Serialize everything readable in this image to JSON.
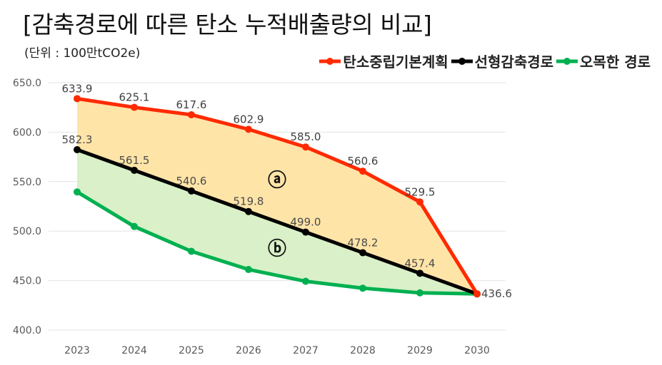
{
  "chart_data": {
    "type": "line",
    "title": "[감축경로에 따른 탄소 누적배출량의 비교]",
    "subtitle": "(단위 : 100만tCO2e)",
    "categories": [
      "2023",
      "2024",
      "2025",
      "2026",
      "2027",
      "2028",
      "2029",
      "2030"
    ],
    "y_ticks": [
      "650.0",
      "600.0",
      "550.0",
      "500.0",
      "450.0",
      "400.0"
    ],
    "ylim": [
      400,
      650
    ],
    "grid": true,
    "legend_position": "top-right",
    "series": [
      {
        "name": "탄소중립기본계획",
        "color": "#ff2a00",
        "values": [
          633.9,
          625.1,
          617.6,
          602.9,
          585.0,
          560.6,
          529.5,
          436.6
        ],
        "labels": [
          "633.9",
          "625.1",
          "617.6",
          "602.9",
          "585.0",
          "560.6",
          "529.5",
          ""
        ]
      },
      {
        "name": "선형감축경로",
        "color": "#000000",
        "values": [
          582.3,
          561.5,
          540.6,
          519.8,
          499.0,
          478.2,
          457.4,
          436.6
        ],
        "labels": [
          "582.3",
          "561.5",
          "540.6",
          "519.8",
          "499.0",
          "478.2",
          "457.4",
          "436.6"
        ]
      },
      {
        "name": "오목한 경로",
        "color": "#00b050",
        "values": [
          539.6,
          504.7,
          479.6,
          461.2,
          449.3,
          442.3,
          437.6,
          436.6
        ],
        "labels": [
          "",
          "",
          "",
          "",
          "",
          "",
          "",
          ""
        ]
      }
    ],
    "areas": [
      {
        "label": "ⓐ",
        "between": [
          "탄소중립기본계획",
          "선형감축경로"
        ],
        "color": "#ffe4a8"
      },
      {
        "label": "ⓑ",
        "between": [
          "선형감축경로",
          "오목한 경로"
        ],
        "color": "#d9f0c8"
      }
    ]
  }
}
